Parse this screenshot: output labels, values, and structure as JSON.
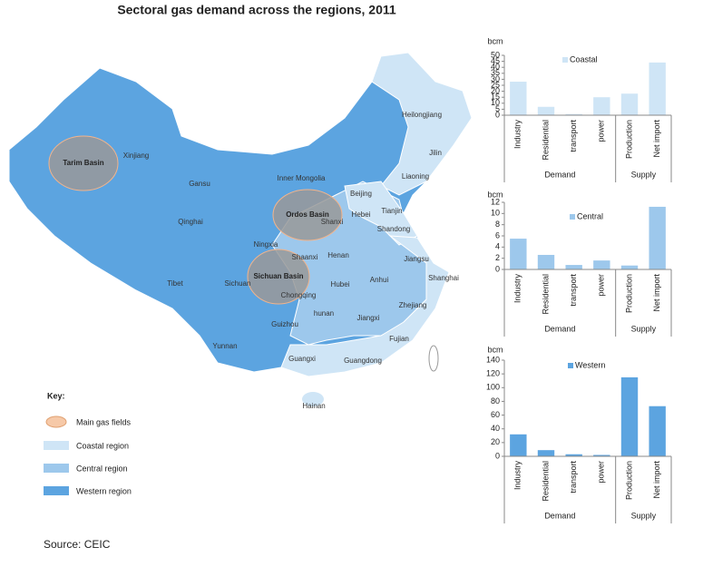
{
  "title": "Sectoral gas demand across the regions, 2011",
  "source": "Source: CEIC",
  "map": {
    "labels": [
      "Heilongjiang",
      "Jilin",
      "Liaoning",
      "Xinjiang",
      "Gansu",
      "Inner Mongolia",
      "Beijing",
      "Tianjin",
      "Hebei",
      "Shanxi",
      "Qinghai",
      "Shandong",
      "Ningxia",
      "Shaanxi",
      "Henan",
      "Jiangsu",
      "Tibet",
      "Sichuan",
      "Anhui",
      "Shanghai",
      "Hubei",
      "Chongqing",
      "Zhejiang",
      "hunan",
      "Jiangxi",
      "Guizhou",
      "Fujian",
      "Yunnan",
      "Guangxi",
      "Guangdong",
      "Hainan"
    ],
    "basins": [
      "Tarim Basin",
      "Ordos Basin",
      "Sichuan Basin"
    ]
  },
  "key": {
    "title": "Key:",
    "items": [
      "Main gas fields",
      "Coastal region",
      "Central region",
      "Western region"
    ]
  },
  "chart_data": [
    {
      "type": "bar",
      "y_label": "bcm",
      "categories": [
        "Industry",
        "Residential",
        "transport",
        "power",
        "Production",
        "Net import"
      ],
      "groups": [
        "Demand",
        "Supply"
      ],
      "series": [
        {
          "name": "Coastal",
          "color": "#cfe5f6",
          "values": [
            28,
            7,
            1,
            15,
            18,
            44
          ]
        }
      ],
      "ylim": [
        0,
        50
      ],
      "yticks": [
        0,
        5,
        10,
        15,
        20,
        25,
        30,
        35,
        40,
        45,
        50
      ]
    },
    {
      "type": "bar",
      "y_label": "bcm",
      "categories": [
        "Industry",
        "Residential",
        "transport",
        "power",
        "Production",
        "Net import"
      ],
      "groups": [
        "Demand",
        "Supply"
      ],
      "series": [
        {
          "name": "Central",
          "color": "#9dc8ec",
          "values": [
            5.5,
            2.6,
            0.8,
            1.6,
            0.7,
            11.2
          ]
        }
      ],
      "ylim": [
        0,
        12
      ],
      "yticks": [
        0,
        2,
        4,
        6,
        8,
        10,
        12
      ]
    },
    {
      "type": "bar",
      "y_label": "bcm",
      "categories": [
        "Industry",
        "Residential",
        "transport",
        "power",
        "Production",
        "Net import"
      ],
      "groups": [
        "Demand",
        "Supply"
      ],
      "series": [
        {
          "name": "Western",
          "color": "#5ca4e0",
          "values": [
            32,
            9,
            3,
            2,
            115,
            73
          ]
        }
      ],
      "ylim": [
        0,
        140
      ],
      "yticks": [
        0,
        20,
        40,
        60,
        80,
        100,
        120,
        140
      ]
    }
  ]
}
